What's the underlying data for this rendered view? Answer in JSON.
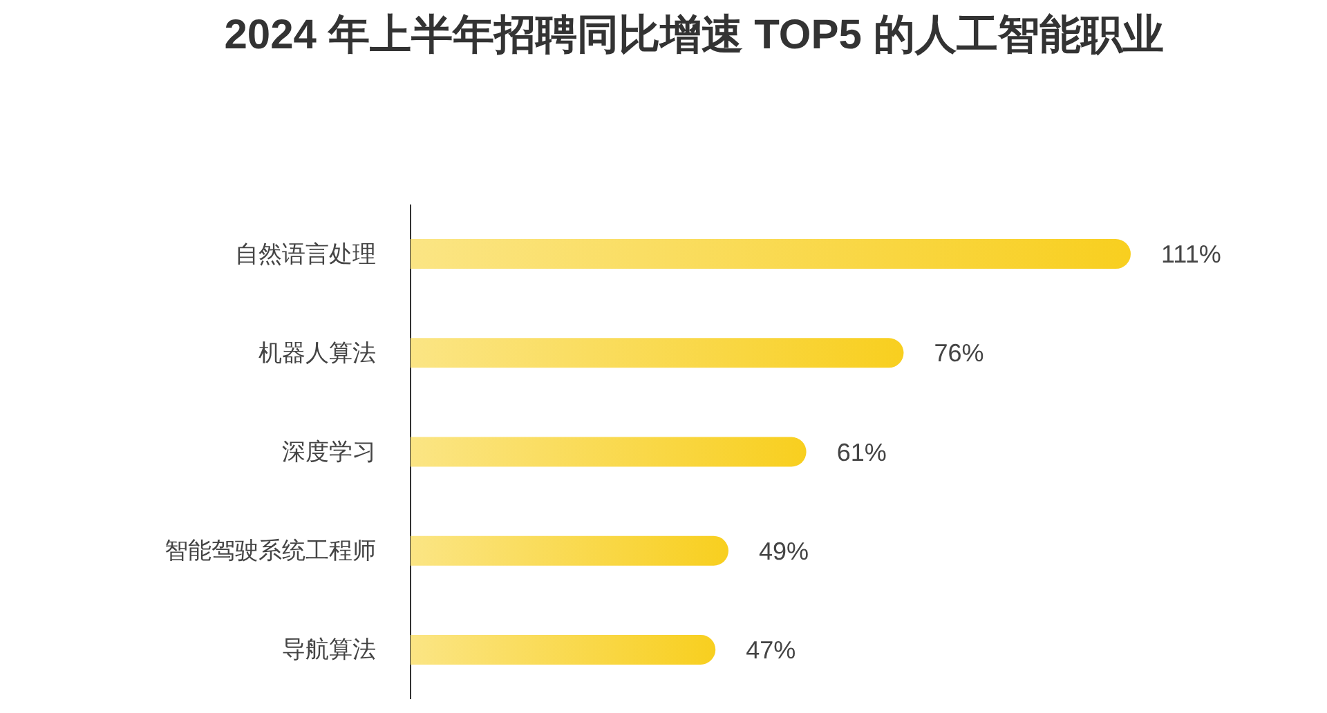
{
  "chart_data": {
    "type": "bar",
    "orientation": "horizontal",
    "title": "2024 年上半年招聘同比增速 TOP5 的人工智能职业",
    "categories": [
      "自然语言处理",
      "机器人算法",
      "深度学习",
      "智能驾驶系统工程师",
      "导航算法"
    ],
    "values": [
      111,
      76,
      61,
      49,
      47
    ],
    "color": "#f8cf1f",
    "value_labels": [
      "111%",
      "76%",
      "61%",
      "49%",
      "47%"
    ]
  }
}
